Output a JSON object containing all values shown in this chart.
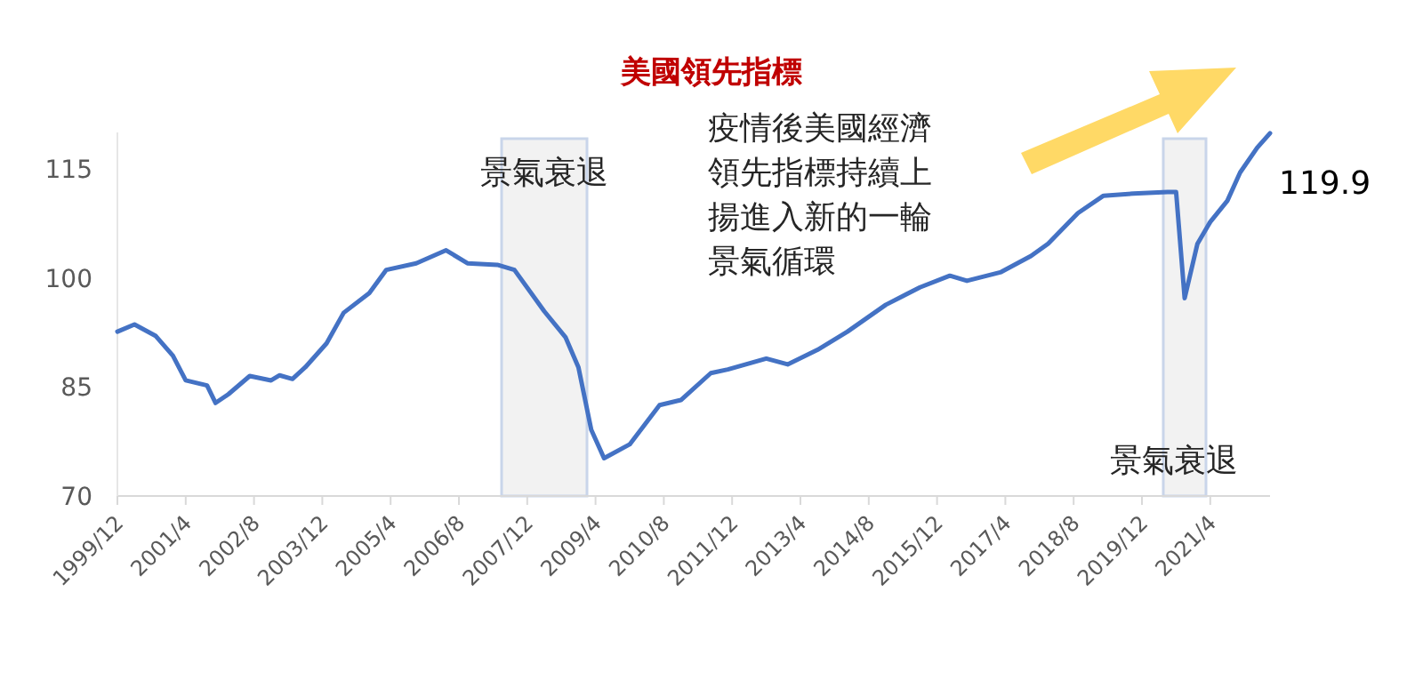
{
  "chart_data": {
    "type": "line",
    "title": "美國領先指標",
    "x": [
      "1999-12",
      "2000-04",
      "2000-09",
      "2001-01",
      "2001-04",
      "2001-09",
      "2001-11",
      "2002-02",
      "2002-07",
      "2002-12",
      "2003-02",
      "2003-05",
      "2003-08",
      "2004-01",
      "2004-05",
      "2004-11",
      "2005-03",
      "2005-10",
      "2006-05",
      "2006-10",
      "2007-05",
      "2007-09",
      "2008-04",
      "2008-09",
      "2008-12",
      "2009-03",
      "2009-06",
      "2009-12",
      "2010-07",
      "2010-12",
      "2011-07",
      "2011-11",
      "2012-08",
      "2013-01",
      "2013-08",
      "2014-03",
      "2014-12",
      "2015-08",
      "2016-03",
      "2016-07",
      "2017-03",
      "2017-10",
      "2018-02",
      "2018-09",
      "2019-03",
      "2019-10",
      "2020-06",
      "2020-08",
      "2020-10",
      "2021-01",
      "2021-04",
      "2021-08",
      "2021-11",
      "2022-03",
      "2022-06"
    ],
    "series": [
      {
        "color": "#4472c4",
        "values": [
          92.6,
          93.6,
          92.0,
          89.3,
          85.9,
          85.2,
          82.8,
          84.0,
          86.5,
          85.9,
          86.6,
          86.1,
          87.7,
          91.0,
          95.2,
          97.9,
          101.1,
          102.0,
          103.8,
          102.0,
          101.8,
          101.1,
          95.4,
          91.8,
          87.7,
          79.1,
          75.2,
          77.1,
          82.5,
          83.2,
          86.9,
          87.4,
          88.9,
          88.1,
          90.1,
          92.6,
          96.3,
          98.7,
          100.3,
          99.6,
          100.8,
          103.0,
          104.7,
          108.9,
          111.3,
          111.6,
          111.8,
          111.8,
          97.2,
          104.7,
          107.7,
          110.6,
          114.5,
          117.9,
          119.9
        ]
      }
    ],
    "xlim": [
      "1999-12",
      "2022-06"
    ],
    "xticks": [
      {
        "value": "1999-12",
        "label": "1999/12"
      },
      {
        "value": "2001-04",
        "label": "2001/4"
      },
      {
        "value": "2002-08",
        "label": "2002/8"
      },
      {
        "value": "2003-12",
        "label": "2003/12"
      },
      {
        "value": "2005-04",
        "label": "2005/4"
      },
      {
        "value": "2006-08",
        "label": "2006/8"
      },
      {
        "value": "2007-12",
        "label": "2007/12"
      },
      {
        "value": "2009-04",
        "label": "2009/4"
      },
      {
        "value": "2010-08",
        "label": "2010/8"
      },
      {
        "value": "2011-12",
        "label": "2011/12"
      },
      {
        "value": "2013-04",
        "label": "2013/4"
      },
      {
        "value": "2014-08",
        "label": "2014/8"
      },
      {
        "value": "2015-12",
        "label": "2015/12"
      },
      {
        "value": "2017-04",
        "label": "2017/4"
      },
      {
        "value": "2018-08",
        "label": "2018/8"
      },
      {
        "value": "2019-12",
        "label": "2019/12"
      },
      {
        "value": "2021-04",
        "label": "2021/4"
      }
    ],
    "ylim": [
      70,
      120
    ],
    "yticks": [
      70,
      85,
      100,
      115
    ],
    "grid": false,
    "marker": "none",
    "line_style": "solid",
    "bands": [
      {
        "axis": "x",
        "from": "2007-06",
        "to": "2009-02",
        "label": "景氣衰退",
        "color": "#f2f2f2"
      },
      {
        "axis": "x",
        "from": "2020-05",
        "to": "2021-03",
        "label": "景氣衰退",
        "color": "#f2f2f2"
      }
    ],
    "annotations": [
      "疫情後美國經濟領先指標持續上揚進入新的一輪景氣循環",
      {
        "text": "119.9",
        "x": "2022-06",
        "y": 119.9
      }
    ]
  }
}
